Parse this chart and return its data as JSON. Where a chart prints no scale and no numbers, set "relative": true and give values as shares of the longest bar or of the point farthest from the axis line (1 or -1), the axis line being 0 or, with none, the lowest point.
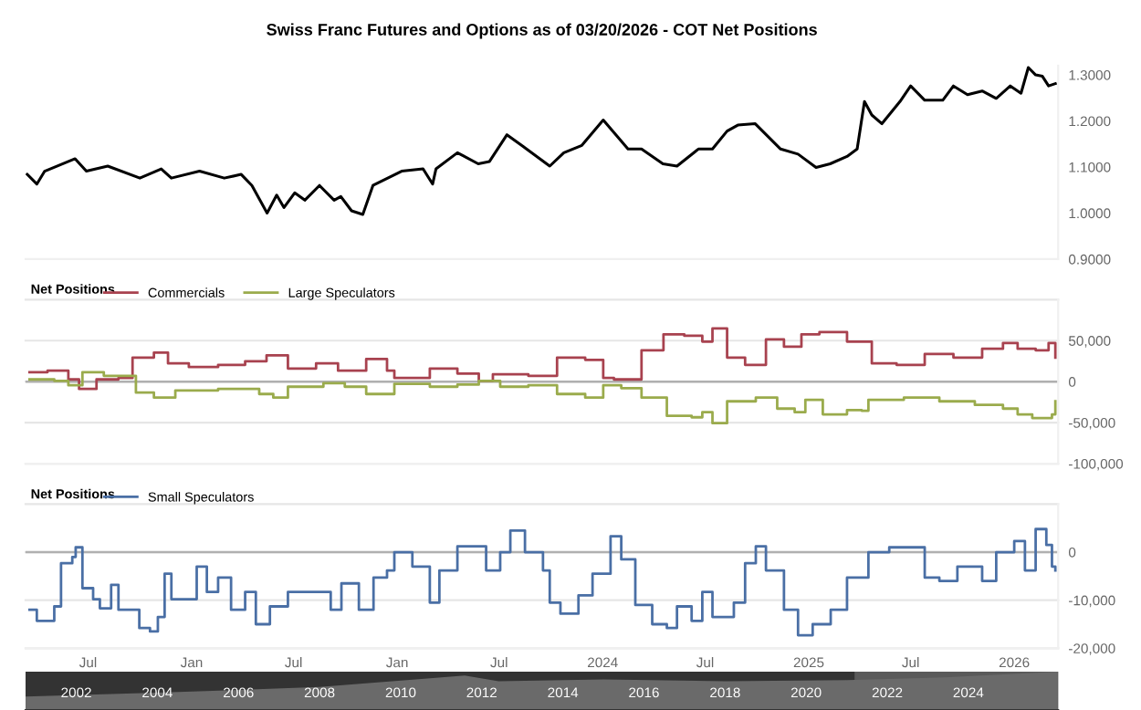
{
  "chart_data": [
    {
      "type": "line",
      "title": "Swiss Franc Futures and Options as of 03/20/2026 - COT Net Positions",
      "tick_labels": "y",
      "grid": false,
      "xlim": [
        "2021-03-12",
        "2026-03-20"
      ],
      "ylim": [
        0.9,
        1.32
      ],
      "yticks": [
        {
          "value": 0.9,
          "label": "0.9000"
        },
        {
          "value": 1.0,
          "label": "1.0000"
        },
        {
          "value": 1.1,
          "label": "1.1000"
        },
        {
          "value": 1.2,
          "label": "1.2000"
        },
        {
          "value": 1.3,
          "label": "1.3000"
        }
      ],
      "series": [
        {
          "color": "#000000",
          "x": [
            "2021-03-15",
            "2021-04-01",
            "2021-04-15",
            "2021-06-08",
            "2021-06-28",
            "2021-08-05",
            "2021-10-01",
            "2021-11-08",
            "2021-11-26",
            "2022-01-15",
            "2022-02-28",
            "2022-03-30",
            "2022-04-18",
            "2022-05-15",
            "2022-06-01",
            "2022-06-14",
            "2022-07-03",
            "2022-07-21",
            "2022-08-16",
            "2022-09-11",
            "2022-09-23",
            "2022-10-12",
            "2022-11-01",
            "2022-11-19",
            "2023-01-09",
            "2023-02-16",
            "2023-03-05",
            "2023-03-11",
            "2023-04-18",
            "2023-05-25",
            "2023-06-14",
            "2023-07-15",
            "2023-08-10",
            "2023-09-29",
            "2023-10-24",
            "2023-11-25",
            "2024-01-02",
            "2024-02-15",
            "2024-03-10",
            "2024-04-17",
            "2024-05-12",
            "2024-06-19",
            "2024-07-14",
            "2024-08-09",
            "2024-08-28",
            "2024-09-28",
            "2024-11-12",
            "2024-12-13",
            "2025-01-14",
            "2025-02-08",
            "2025-03-10",
            "2025-03-28",
            "2025-04-10",
            "2025-04-23",
            "2025-05-11",
            "2025-06-12",
            "2025-07-01",
            "2025-07-26",
            "2025-08-27",
            "2025-09-15",
            "2025-10-10",
            "2025-11-05",
            "2025-11-30",
            "2025-12-25",
            "2026-01-13",
            "2026-01-26",
            "2026-02-08",
            "2026-02-20",
            "2026-03-03",
            "2026-03-15"
          ],
          "values": [
            1.084,
            1.063,
            1.091,
            1.118,
            1.091,
            1.102,
            1.076,
            1.096,
            1.076,
            1.091,
            1.076,
            1.084,
            1.06,
            1.0,
            1.039,
            1.012,
            1.044,
            1.028,
            1.06,
            1.028,
            1.036,
            1.005,
            0.997,
            1.06,
            1.091,
            1.096,
            1.063,
            1.096,
            1.131,
            1.107,
            1.112,
            1.17,
            1.147,
            1.102,
            1.131,
            1.147,
            1.202,
            1.139,
            1.139,
            1.107,
            1.102,
            1.139,
            1.139,
            1.178,
            1.191,
            1.194,
            1.139,
            1.128,
            1.099,
            1.107,
            1.123,
            1.139,
            1.242,
            1.213,
            1.194,
            1.242,
            1.276,
            1.245,
            1.245,
            1.276,
            1.257,
            1.265,
            1.249,
            1.276,
            1.26,
            1.316,
            1.3,
            1.297,
            1.276,
            1.281
          ]
        }
      ]
    },
    {
      "type": "step",
      "legend_title": "Net Positions",
      "legend": "top left",
      "tick_labels": "y",
      "grid": "y",
      "xlim": [
        "2021-03-12",
        "2026-03-20"
      ],
      "ylim": [
        -100000,
        100000
      ],
      "yticks": [
        {
          "value": -100000,
          "label": "-100,000"
        },
        {
          "value": -50000,
          "label": "-50,000"
        },
        {
          "value": 0,
          "label": "0"
        },
        {
          "value": 50000,
          "label": "50,000"
        },
        {
          "value": 100000,
          "label": null
        }
      ],
      "ref_lines": [
        {
          "axis": "y",
          "value": 0,
          "color": "#b0b0b0"
        }
      ],
      "series": [
        {
          "name": "Commercials",
          "color": "#a8424f",
          "x": [
            "2021-03-19",
            "2021-04-20",
            "2021-05-27",
            "2021-06-15",
            "2021-07-16",
            "2021-08-24",
            "2021-09-18",
            "2021-10-26",
            "2021-11-20",
            "2021-12-27",
            "2022-02-17",
            "2022-04-06",
            "2022-05-14",
            "2022-06-21",
            "2022-08-10",
            "2022-09-18",
            "2022-11-07",
            "2022-12-14",
            "2022-12-27",
            "2023-02-28",
            "2023-04-18",
            "2023-05-26",
            "2023-06-20",
            "2023-08-22",
            "2023-10-12",
            "2023-12-01",
            "2024-01-02",
            "2024-01-21",
            "2024-03-10",
            "2024-04-18",
            "2024-05-25",
            "2024-06-26",
            "2024-07-14",
            "2024-08-09",
            "2024-09-10",
            "2024-10-17",
            "2024-11-12",
            "2024-11-18",
            "2024-12-19",
            "2025-01-20",
            "2025-03-10",
            "2025-04-05",
            "2025-04-23",
            "2025-06-06",
            "2025-07-26",
            "2025-09-15",
            "2025-11-05",
            "2025-12-12",
            "2026-01-07",
            "2026-02-08",
            "2026-03-03",
            "2026-03-15"
          ],
          "values": [
            11500,
            13300,
            2700,
            -8900,
            2700,
            4400,
            29300,
            35500,
            22200,
            17800,
            20400,
            24900,
            32000,
            16000,
            22200,
            13300,
            27500,
            13300,
            4400,
            16000,
            9800,
            900,
            8900,
            7100,
            29300,
            26600,
            4400,
            2700,
            38200,
            57700,
            55900,
            48800,
            64800,
            29300,
            20400,
            51500,
            51500,
            42600,
            57700,
            60400,
            48800,
            48800,
            22200,
            20400,
            33700,
            29300,
            40000,
            47100,
            40000,
            38200,
            47100,
            29300
          ]
        },
        {
          "name": "Large Speculators",
          "color": "#9aab4c",
          "x": [
            "2021-03-19",
            "2021-05-02",
            "2021-05-27",
            "2021-06-21",
            "2021-07-29",
            "2021-09-06",
            "2021-09-24",
            "2021-10-26",
            "2021-12-03",
            "2022-02-17",
            "2022-05-01",
            "2022-05-26",
            "2022-06-21",
            "2022-08-23",
            "2022-09-30",
            "2022-11-07",
            "2022-12-27",
            "2023-02-28",
            "2023-04-18",
            "2023-05-26",
            "2023-07-03",
            "2023-08-22",
            "2023-10-12",
            "2023-12-01",
            "2024-01-02",
            "2024-02-03",
            "2024-03-10",
            "2024-04-24",
            "2024-06-07",
            "2024-06-26",
            "2024-07-14",
            "2024-08-09",
            "2024-09-29",
            "2024-11-06",
            "2024-12-07",
            "2024-12-26",
            "2025-01-26",
            "2025-03-10",
            "2025-04-05",
            "2025-04-17",
            "2025-06-19",
            "2025-08-21",
            "2025-10-23",
            "2025-12-12",
            "2026-01-07",
            "2026-02-02",
            "2026-03-09",
            "2026-03-15"
          ],
          "values": [
            2700,
            900,
            -4400,
            11500,
            7100,
            7100,
            -13300,
            -19500,
            -10700,
            -8900,
            -15100,
            -19500,
            -6200,
            -1800,
            -6200,
            -15100,
            -2700,
            -6200,
            -3600,
            900,
            -6200,
            -4400,
            -15100,
            -19500,
            -4400,
            -8000,
            -19500,
            -41700,
            -43500,
            -37300,
            -50600,
            -24000,
            -19500,
            -32900,
            -37300,
            -22200,
            -40000,
            -34600,
            -35500,
            -22200,
            -19500,
            -24000,
            -28400,
            -32900,
            -40000,
            -44400,
            -40000,
            -24000
          ]
        }
      ]
    },
    {
      "type": "step",
      "legend_title": "Net Positions",
      "legend": "top left",
      "tick_labels": "xy",
      "grid": "y",
      "xlim": [
        "2021-03-12",
        "2026-03-20"
      ],
      "ylim": [
        -20000,
        10000
      ],
      "yticks": [
        {
          "value": -20000,
          "label": "-20,000"
        },
        {
          "value": -10000,
          "label": "-10,000"
        },
        {
          "value": 0,
          "label": "0"
        },
        {
          "value": 10000,
          "label": null
        }
      ],
      "xticks": [
        {
          "value": "2021-07-01",
          "label": "Jul"
        },
        {
          "value": "2022-01-01",
          "label": "Jan"
        },
        {
          "value": "2022-07-01",
          "label": "Jul"
        },
        {
          "value": "2023-01-01",
          "label": "Jan"
        },
        {
          "value": "2023-07-01",
          "label": "Jul"
        },
        {
          "value": "2024-01-01",
          "label": "2024"
        },
        {
          "value": "2024-07-01",
          "label": "Jul"
        },
        {
          "value": "2025-01-01",
          "label": "2025"
        },
        {
          "value": "2025-07-01",
          "label": "Jul"
        },
        {
          "value": "2026-01-01",
          "label": "2026"
        }
      ],
      "ref_lines": [
        {
          "axis": "y",
          "value": 0,
          "color": "#b0b0b0"
        }
      ],
      "series": [
        {
          "name": "Small Speculators",
          "color": "#4a6fa5",
          "x": [
            "2021-03-19",
            "2021-04-01",
            "2021-05-02",
            "2021-05-14",
            "2021-06-03",
            "2021-06-09",
            "2021-06-21",
            "2021-07-10",
            "2021-07-22",
            "2021-08-11",
            "2021-08-24",
            "2021-09-12",
            "2021-09-30",
            "2021-10-19",
            "2021-11-02",
            "2021-11-14",
            "2021-11-26",
            "2022-01-10",
            "2022-01-28",
            "2022-02-17",
            "2022-03-12",
            "2022-04-06",
            "2022-04-25",
            "2022-05-20",
            "2022-06-21",
            "2022-08-10",
            "2022-09-05",
            "2022-09-24",
            "2022-10-25",
            "2022-11-20",
            "2022-12-14",
            "2022-12-27",
            "2023-01-28",
            "2023-02-28",
            "2023-03-17",
            "2023-04-18",
            "2023-06-08",
            "2023-07-03",
            "2023-07-21",
            "2023-08-16",
            "2023-09-17",
            "2023-09-29",
            "2023-10-18",
            "2023-11-19",
            "2023-12-14",
            "2024-01-15",
            "2024-02-03",
            "2024-02-28",
            "2024-03-29",
            "2024-04-24",
            "2024-05-12",
            "2024-06-07",
            "2024-06-26",
            "2024-07-14",
            "2024-08-21",
            "2024-09-10",
            "2024-09-29",
            "2024-10-17",
            "2024-11-18",
            "2024-12-13",
            "2025-01-08",
            "2025-02-09",
            "2025-03-10",
            "2025-04-17",
            "2025-05-24",
            "2025-06-25",
            "2025-07-26",
            "2025-08-21",
            "2025-09-22",
            "2025-11-05",
            "2025-11-30",
            "2026-01-01",
            "2026-01-20",
            "2026-02-08",
            "2026-02-27",
            "2026-03-09",
            "2026-03-15"
          ],
          "values": [
            -12000,
            -14300,
            -11300,
            -2300,
            -1000,
            1000,
            -7500,
            -9800,
            -11700,
            -6800,
            -12000,
            -12000,
            -15800,
            -16500,
            -13500,
            -4500,
            -9800,
            -3000,
            -8300,
            -5300,
            -12000,
            -8300,
            -15000,
            -11300,
            -8300,
            -8300,
            -12000,
            -6500,
            -12000,
            -5300,
            -3800,
            0,
            -3000,
            -10500,
            -3800,
            1200,
            -3800,
            0,
            4500,
            0,
            -3800,
            -10500,
            -12800,
            -9000,
            -4500,
            3300,
            -1500,
            -11000,
            -15000,
            -15800,
            -11300,
            -14300,
            -8300,
            -13500,
            -10500,
            -2300,
            1200,
            -3800,
            -12000,
            -17300,
            -15000,
            -12000,
            -5300,
            0,
            1000,
            1000,
            -5300,
            -6000,
            -3000,
            -6000,
            0,
            2300,
            -3800,
            4800,
            1500,
            -3000,
            -3800
          ]
        }
      ]
    },
    {
      "type": "area",
      "relative": true,
      "tick_labels": "x",
      "grid": false,
      "xlim": [
        "2000-10-01",
        "2026-03-20"
      ],
      "xticks": [
        {
          "value": "2002-01-01",
          "label": "2002"
        },
        {
          "value": "2004-01-01",
          "label": "2004"
        },
        {
          "value": "2006-01-01",
          "label": "2006"
        },
        {
          "value": "2008-01-01",
          "label": "2008"
        },
        {
          "value": "2010-01-01",
          "label": "2010"
        },
        {
          "value": "2012-01-01",
          "label": "2012"
        },
        {
          "value": "2014-01-01",
          "label": "2014"
        },
        {
          "value": "2016-01-01",
          "label": "2016"
        },
        {
          "value": "2018-01-01",
          "label": "2018"
        },
        {
          "value": "2020-01-01",
          "label": "2020"
        },
        {
          "value": "2022-01-01",
          "label": "2022"
        },
        {
          "value": "2024-01-01",
          "label": "2024"
        }
      ],
      "bands": [
        {
          "axis": "x",
          "from": "2021-03-12",
          "to": "2026-03-20",
          "color": "#5a5a5a"
        }
      ],
      "series": [
        {
          "color": "#6a6a6a",
          "x": [
            "2000-10-01",
            "2004-01-01",
            "2008-01-01",
            "2011-08-01",
            "2012-06-01",
            "2015-01-01",
            "2018-01-01",
            "2021-01-01",
            "2023-06-01",
            "2026-03-15"
          ],
          "values": [
            0.35,
            0.45,
            0.6,
            0.9,
            0.75,
            0.8,
            0.75,
            0.78,
            0.85,
            1.0
          ]
        }
      ]
    }
  ]
}
